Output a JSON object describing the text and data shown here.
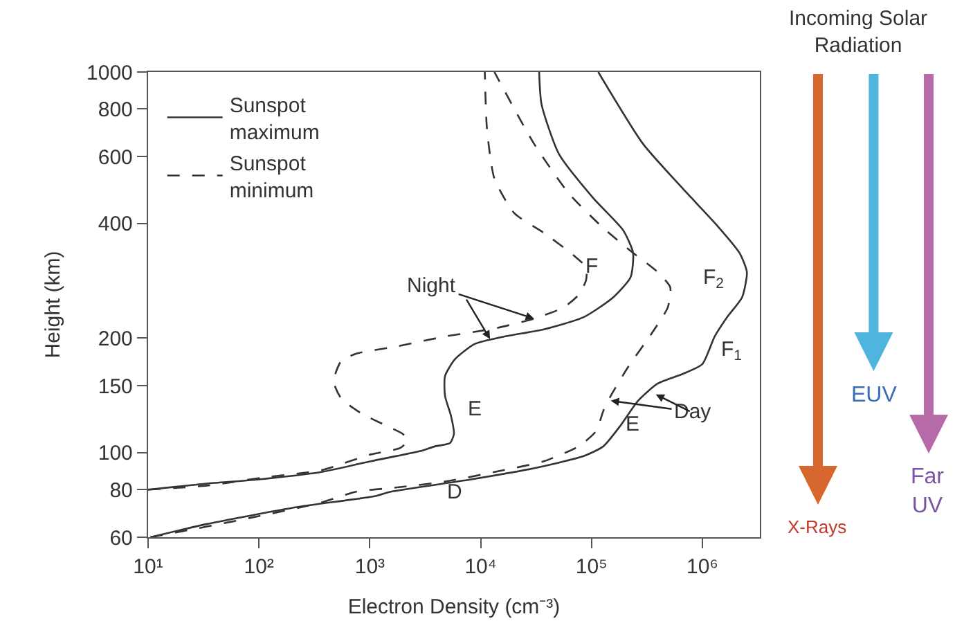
{
  "chart_data": {
    "type": "line",
    "xlabel": "Electron Density (cm⁻³)",
    "ylabel": "Height (km)",
    "log": "xy",
    "legend": "top left",
    "marker": "none",
    "xlim": [
      10,
      3300000
    ],
    "xticks": [
      {
        "value": 10,
        "label": "10¹"
      },
      {
        "value": 100,
        "label": "10²"
      },
      {
        "value": 1000,
        "label": "10³"
      },
      {
        "value": 10000,
        "label": "10⁴"
      },
      {
        "value": 100000,
        "label": "10⁵"
      },
      {
        "value": 1000000,
        "label": "10⁶"
      }
    ],
    "ylim": [
      60,
      1000
    ],
    "yticks": [
      60,
      80,
      100,
      150,
      200,
      400,
      600,
      800,
      1000
    ],
    "series": [
      {
        "name": "Sunspot maximum",
        "color": "#333333",
        "line_style": "solid",
        "x": [
          10.5,
          34,
          220,
          1130,
          1540,
          8000,
          30000,
          85000,
          128000,
          183000,
          263000,
          396000,
          662000,
          1000000,
          1290000,
          1670000,
          2280000,
          2520000,
          2160000,
          1360000,
          662000,
          291000,
          115000
        ],
        "values": [
          60,
          65,
          72,
          77,
          79,
          85,
          91,
          98,
          104,
          118,
          137,
          152,
          161,
          171,
          202,
          227,
          256,
          298,
          335,
          395,
          495,
          648,
          1000
        ]
      },
      {
        "name": "Sunspot minimum",
        "color": "#333333",
        "line_style": "dashed",
        "x": [
          10.5,
          34,
          96,
          365,
          750,
          1710,
          4770,
          13300,
          37200,
          76600,
          110000,
          128000,
          149000,
          214000,
          358000,
          488000,
          513000,
          396000,
          237000,
          128000,
          62400,
          30300,
          13300
        ],
        "values": [
          60,
          64,
          68,
          74,
          79,
          81,
          84,
          89,
          95,
          104,
          114,
          129,
          141,
          168,
          208,
          241,
          272,
          298,
          335,
          389,
          480,
          648,
          1000
        ]
      },
      {
        "color": "#333333",
        "line_style": "solid",
        "x": [
          10,
          34,
          96,
          365,
          1020,
          2850,
          3880,
          5280,
          5740,
          5400,
          4770,
          4770,
          5860,
          8830,
          16400,
          37200,
          84900,
          157000,
          225000,
          237000,
          193000,
          104000,
          50700,
          35400,
          33700
        ],
        "values": [
          80,
          83,
          85,
          89,
          95,
          101,
          104,
          106,
          112,
          125,
          141,
          159,
          176,
          193,
          202,
          211,
          227,
          256,
          289,
          335,
          384,
          466,
          610,
          823,
          1000
        ]
      },
      {
        "color": "#333333",
        "line_style": "dashed",
        "x": [
          10,
          34,
          106,
          365,
          1020,
          1890,
          2210,
          1990,
          1390,
          832,
          551,
          472,
          551,
          750,
          1710,
          4770,
          13300,
          30300,
          56200,
          76600,
          89300,
          89300,
          69000,
          37200,
          20100,
          13300,
          11400,
          10900
        ],
        "values": [
          80,
          82,
          86,
          90,
          99,
          103,
          108,
          112,
          118,
          127,
          139,
          154,
          174,
          182,
          190,
          202,
          212,
          225,
          241,
          260,
          284,
          307,
          330,
          378,
          426,
          525,
          709,
          1000
        ]
      }
    ],
    "annotations": [
      "F",
      "F$_{2}$",
      "F$_{1}$",
      "E",
      "E",
      "D",
      {
        "text": "Night",
        "x": 30300,
        "y": 225
      },
      {
        "text": "Day",
        "x": 149000,
        "y": 137
      },
      "Incoming Solar Radiation",
      "X-Rays",
      "EUV",
      "Far UV"
    ]
  }
}
